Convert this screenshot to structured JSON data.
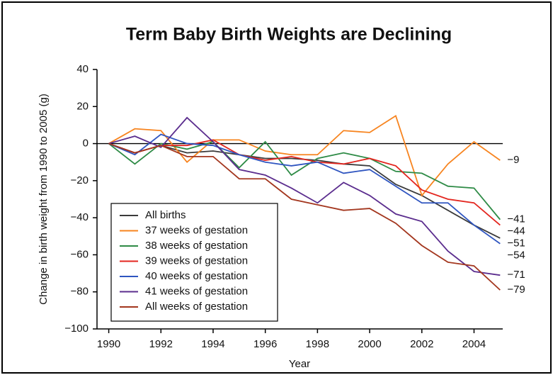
{
  "chart_data": {
    "type": "line",
    "title": "Term Baby Birth Weights are Declining",
    "xlabel": "Year",
    "ylabel": "Change in birth weight from 1990 to 2005 (g)",
    "x": [
      1990,
      1991,
      1992,
      1993,
      1994,
      1995,
      1996,
      1997,
      1998,
      1999,
      2000,
      2001,
      2002,
      2003,
      2004,
      2005
    ],
    "series": [
      {
        "name": "All births",
        "color": "#3a3a3a",
        "values": [
          0,
          -5,
          -1,
          -5,
          -4,
          -6,
          -8,
          -8,
          -9,
          -11,
          -12,
          -22,
          -28,
          -36,
          -44,
          -51
        ],
        "value_labels": [
          null,
          null,
          null,
          null,
          null,
          null,
          null,
          null,
          null,
          null,
          null,
          null,
          null,
          null,
          null,
          "−51"
        ]
      },
      {
        "name": "37 weeks of gestation",
        "color": "#f7841f",
        "values": [
          0,
          8,
          7,
          -10,
          2,
          2,
          -4,
          -6,
          -6,
          7,
          6,
          15,
          -28,
          -11,
          1,
          -9
        ],
        "value_labels": [
          null,
          null,
          null,
          null,
          null,
          null,
          null,
          null,
          null,
          null,
          null,
          null,
          null,
          null,
          null,
          "−9"
        ]
      },
      {
        "name": "38 weeks of gestation",
        "color": "#2e8b46",
        "values": [
          0,
          -11,
          0,
          -3,
          1,
          -13,
          1,
          -17,
          -8,
          -5,
          -8,
          -15,
          -16,
          -23,
          -24,
          -41
        ],
        "value_labels": [
          null,
          null,
          null,
          null,
          null,
          null,
          null,
          null,
          null,
          null,
          null,
          null,
          null,
          null,
          null,
          "−41"
        ]
      },
      {
        "name": "39 weeks of gestation",
        "color": "#e3261f",
        "values": [
          0,
          -5,
          -1,
          -1,
          2,
          -6,
          -9,
          -7,
          -10,
          -11,
          -8,
          -12,
          -25,
          -30,
          -32,
          -44
        ],
        "value_labels": [
          null,
          null,
          null,
          null,
          null,
          null,
          null,
          null,
          null,
          null,
          null,
          null,
          null,
          null,
          null,
          "−44"
        ]
      },
      {
        "name": "40 weeks of gestation",
        "color": "#2f55c0",
        "values": [
          0,
          -6,
          5,
          0,
          -1,
          -6,
          -10,
          -12,
          -10,
          -16,
          -14,
          -23,
          -32,
          -32,
          -44,
          -54
        ],
        "value_labels": [
          null,
          null,
          null,
          null,
          null,
          null,
          null,
          null,
          null,
          null,
          null,
          null,
          null,
          null,
          null,
          "−54"
        ]
      },
      {
        "name": "41 weeks of gestation",
        "color": "#5b2d8e",
        "values": [
          0,
          4,
          -2,
          14,
          1,
          -14,
          -17,
          -24,
          -32,
          -21,
          -28,
          -38,
          -42,
          -58,
          -69,
          -71
        ],
        "value_labels": [
          null,
          null,
          null,
          null,
          null,
          null,
          null,
          null,
          null,
          null,
          null,
          null,
          null,
          null,
          null,
          "−71"
        ]
      },
      {
        "name": "All weeks of gestation",
        "color": "#a3361e",
        "values": [
          0,
          -5,
          -1,
          -7,
          -7,
          -19,
          -19,
          -30,
          -33,
          -36,
          -35,
          -43,
          -55,
          -64,
          -66,
          -79
        ],
        "value_labels": [
          null,
          null,
          null,
          null,
          null,
          null,
          null,
          null,
          null,
          null,
          null,
          null,
          null,
          null,
          null,
          "−79"
        ]
      }
    ],
    "xlim": [
      1989.55,
      2005.1
    ],
    "xticks": [
      1990,
      1992,
      1994,
      1996,
      1998,
      2000,
      2002,
      2004
    ],
    "ylim": [
      -100,
      40
    ],
    "yticks": [
      40,
      20,
      0,
      {
        "value": -20,
        "label": "−20"
      },
      {
        "value": -40,
        "label": "−40"
      },
      {
        "value": -60,
        "label": "−60"
      },
      {
        "value": -80,
        "label": "−80"
      },
      {
        "value": -100,
        "label": "−100"
      }
    ],
    "zero_line": true,
    "grid": false,
    "legend": "lower left"
  }
}
